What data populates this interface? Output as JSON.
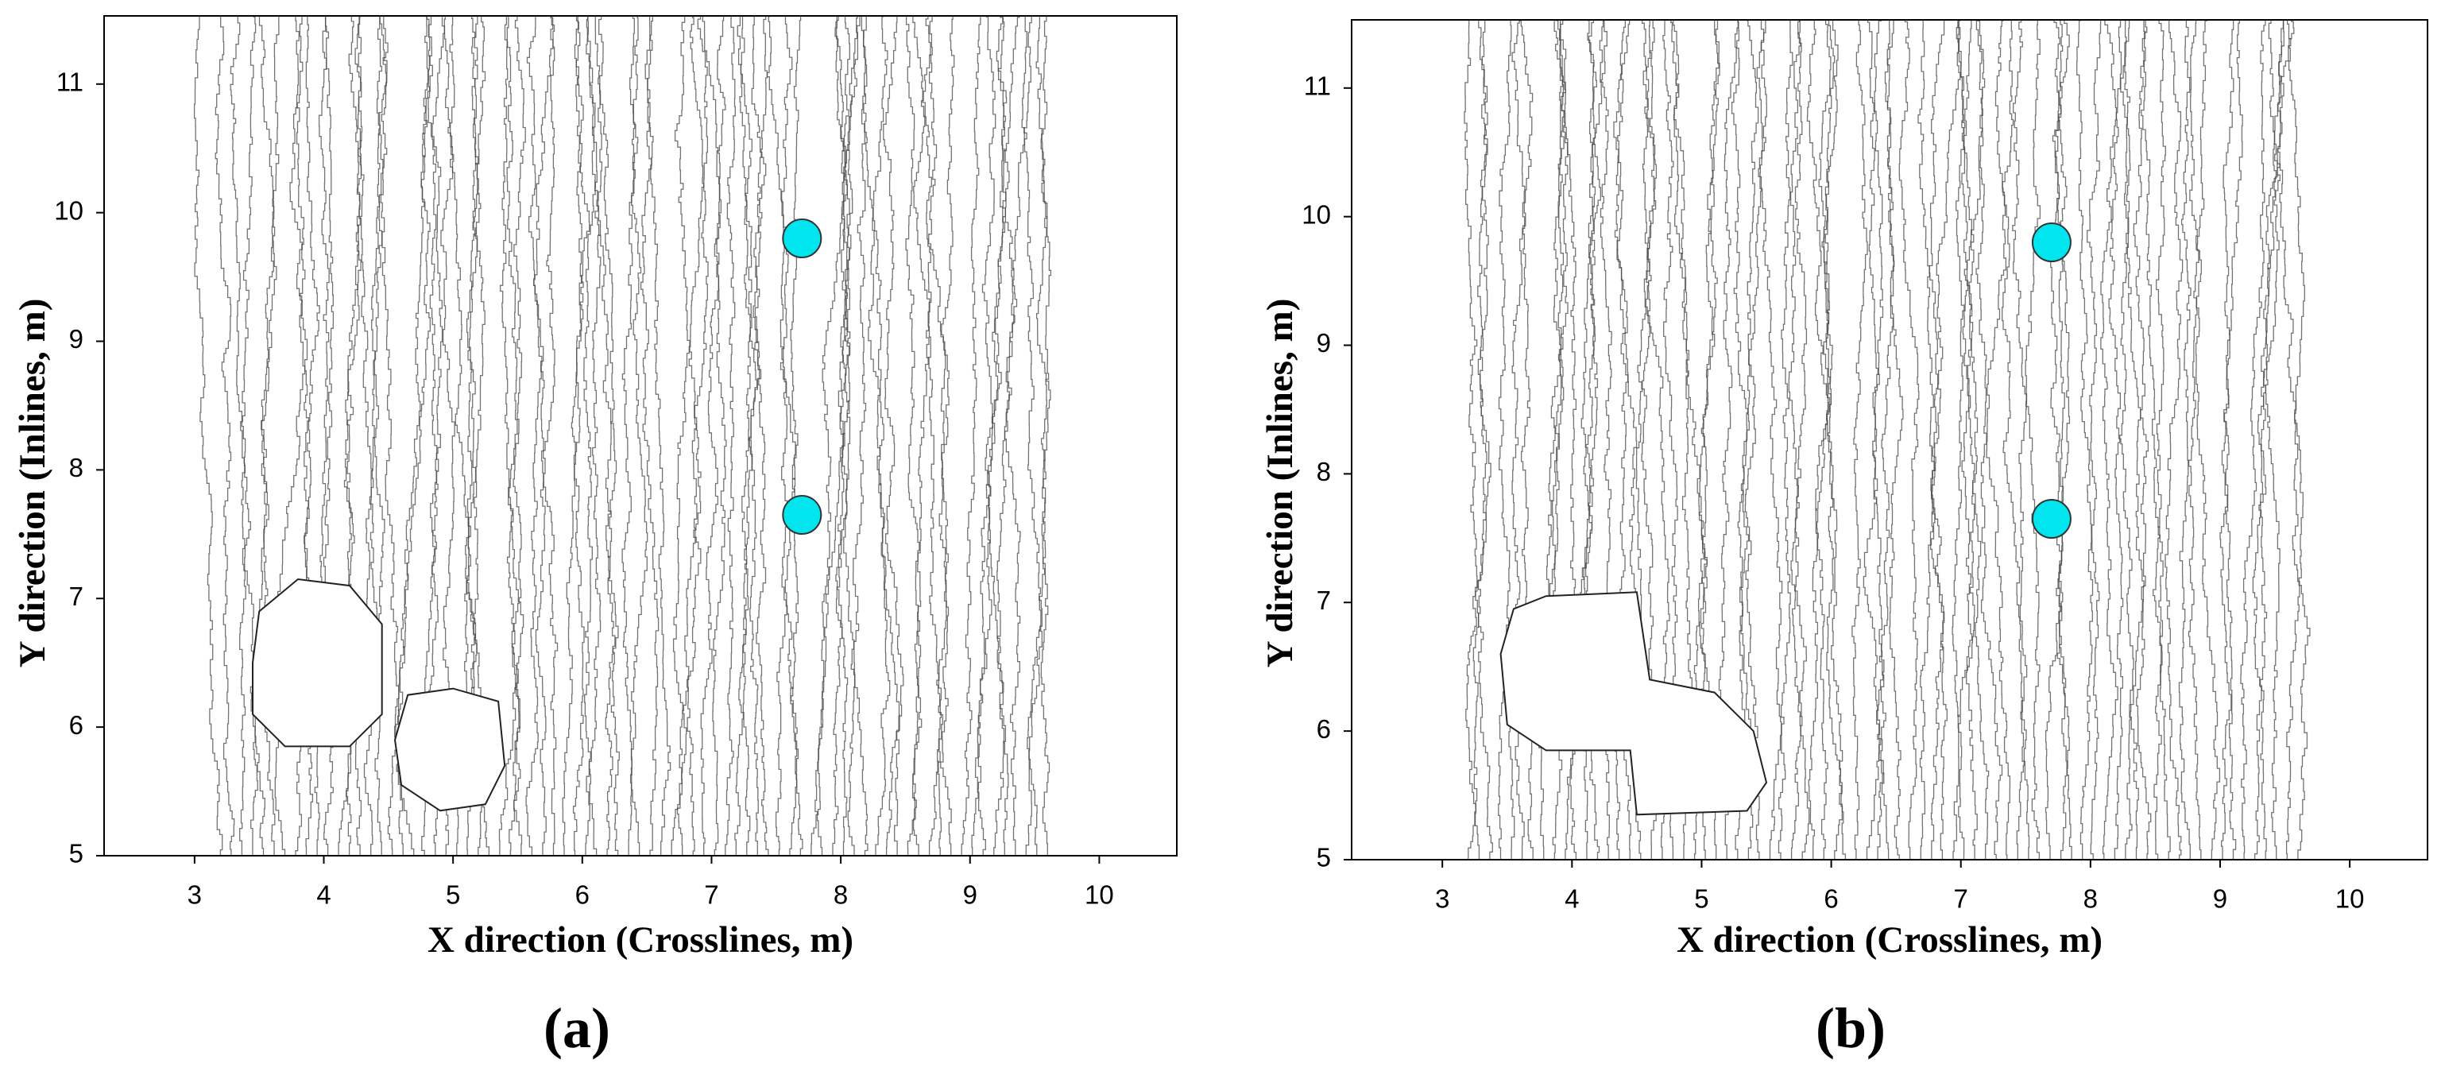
{
  "chart_data": [
    {
      "type": "scatter",
      "label": "(a)",
      "x_label": "X direction (Crosslines, m)",
      "y_label": "Y direction (Inlines, m)",
      "x": [
        7.7,
        7.7
      ],
      "values": [
        9.8,
        7.65
      ],
      "color": "#00e5ee",
      "xlim": [
        2.3,
        10.6
      ],
      "ylim": [
        5,
        11.53
      ],
      "xticks": [
        3,
        4,
        5,
        6,
        7,
        8,
        9,
        10
      ],
      "yticks": [
        5,
        6,
        7,
        8,
        9,
        10,
        11
      ]
    },
    {
      "type": "scatter",
      "label": "(b)",
      "x_label": "X direction (Crosslines, m)",
      "y_label": "Y direction (Inlines, m)",
      "x": [
        7.7,
        7.7
      ],
      "values": [
        9.8,
        7.65
      ],
      "color": "#00e5ee",
      "xlim": [
        2.3,
        10.6
      ],
      "ylim": [
        5,
        11.53
      ],
      "xticks": [
        3,
        4,
        5,
        6,
        7,
        8,
        9,
        10
      ],
      "yticks": [
        5,
        6,
        7,
        8,
        9,
        10,
        11
      ]
    }
  ]
}
